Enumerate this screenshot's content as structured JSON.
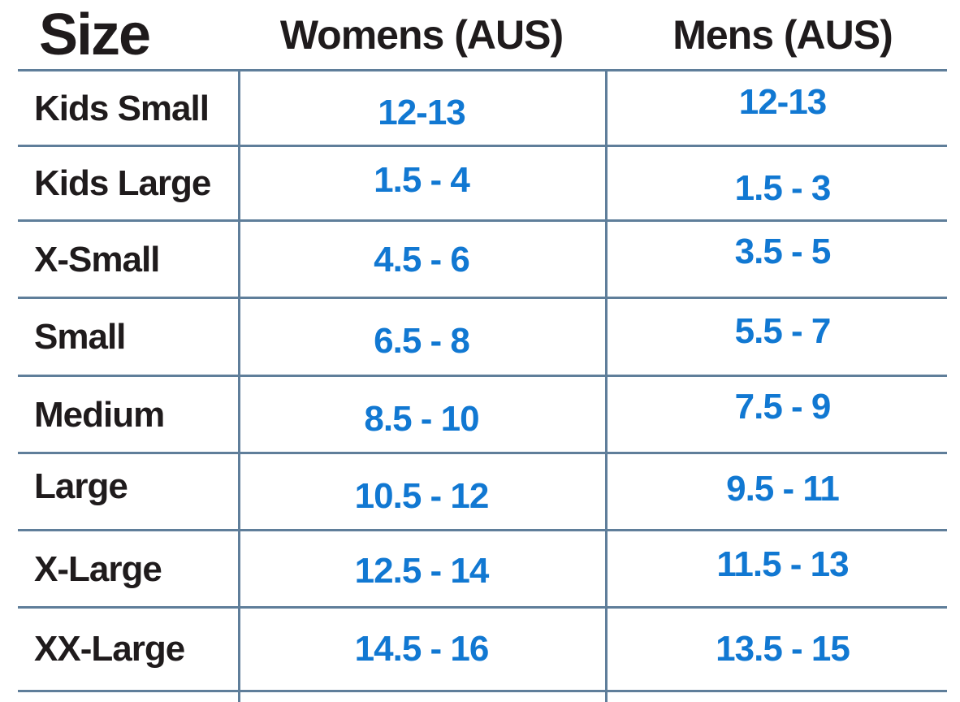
{
  "table": {
    "title": "Size",
    "columns": [
      {
        "label": "Size"
      },
      {
        "label": "Womens (AUS)"
      },
      {
        "label": "Mens (AUS)"
      }
    ],
    "rows": [
      {
        "label": "Kids Small",
        "womens": "12-13",
        "mens": "12-13"
      },
      {
        "label": "Kids Large",
        "womens": "1.5 - 4",
        "mens": "1.5 - 3"
      },
      {
        "label": "X-Small",
        "womens": "4.5 - 6",
        "mens": "3.5 - 5"
      },
      {
        "label": "Small",
        "womens": "6.5 - 8",
        "mens": "5.5 - 7"
      },
      {
        "label": "Medium",
        "womens": "8.5 - 10",
        "mens": "7.5 - 9"
      },
      {
        "label": "Large",
        "womens": "10.5 - 12",
        "mens": "9.5 - 11"
      },
      {
        "label": "X-Large",
        "womens": "12.5 - 14",
        "mens": "11.5 - 13"
      },
      {
        "label": "XX-Large",
        "womens": "14.5 - 16",
        "mens": "13.5 - 15"
      }
    ],
    "colors": {
      "value_text": "#1178d2",
      "grid_line": "#5f7e9a",
      "heading_text": "#1f1b1c",
      "background": "#ffffff"
    }
  },
  "chart_data": {
    "type": "table",
    "title": "Size",
    "column_headers": [
      "Size",
      "Womens (AUS)",
      "Mens (AUS)"
    ],
    "rows": [
      [
        "Kids Small",
        "12-13",
        "12-13"
      ],
      [
        "Kids Large",
        "1.5 - 4",
        "1.5 - 3"
      ],
      [
        "X-Small",
        "4.5 - 6",
        "3.5 - 5"
      ],
      [
        "Small",
        "6.5 - 8",
        "5.5 - 7"
      ],
      [
        "Medium",
        "8.5 - 10",
        "7.5 - 9"
      ],
      [
        "Large",
        "10.5 - 12",
        "9.5 - 11"
      ],
      [
        "X-Large",
        "12.5 - 14",
        "11.5 - 13"
      ],
      [
        "XX-Large",
        "14.5 - 16",
        "13.5 - 15"
      ]
    ]
  }
}
